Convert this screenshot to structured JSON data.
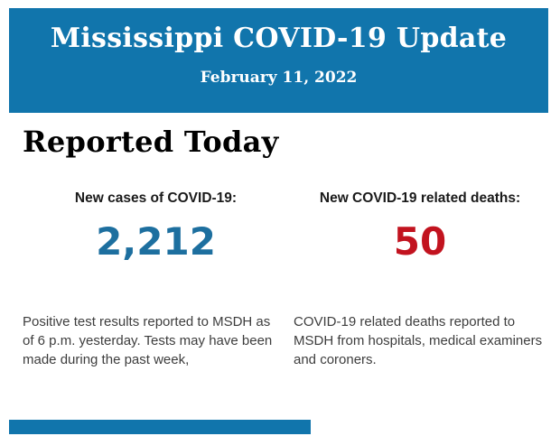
{
  "banner": {
    "title": "Mississippi COVID-19 Update",
    "date": "February 11, 2022",
    "background": "#1175ac",
    "text_color": "#ffffff"
  },
  "section": {
    "heading": "Reported Today"
  },
  "stats": [
    {
      "label": "New cases of COVID-19:",
      "value": "2,212",
      "value_color": "#1d6f9f",
      "description": "Positive test results reported to MSDH as of 6 p.m. yesterday. Tests may have been made during the past week,",
      "description_lines": [
        "Positive test results reported to MSDH as",
        "of 6 p.m. yesterday. Tests may have been",
        "made during the past week,"
      ]
    },
    {
      "label": "New COVID-19 related deaths:",
      "value": "50",
      "value_color": "#c2131f",
      "description": "COVID-19 related deaths reported to MSDH from hospitals, medical examiners and coroners.",
      "description_lines": [
        "COVID-19 related deaths reported to",
        "MSDH from hospitals, medical examiners",
        "and coroners."
      ]
    }
  ],
  "footer": {
    "partial_bar_color": "#1175ac"
  }
}
